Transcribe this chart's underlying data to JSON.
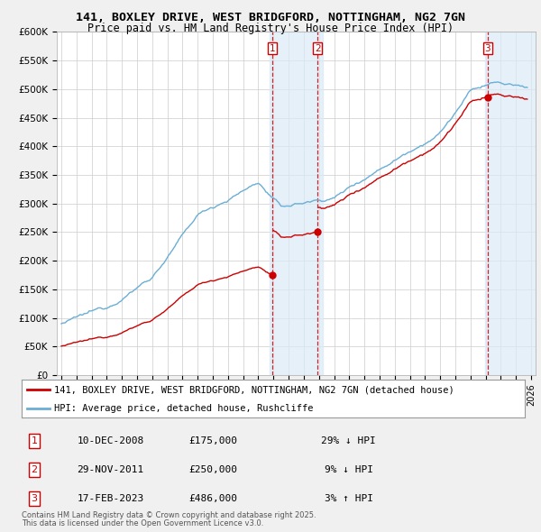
{
  "title1": "141, BOXLEY DRIVE, WEST BRIDGFORD, NOTTINGHAM, NG2 7GN",
  "title2": "Price paid vs. HM Land Registry's House Price Index (HPI)",
  "red_label": "141, BOXLEY DRIVE, WEST BRIDGFORD, NOTTINGHAM, NG2 7GN (detached house)",
  "blue_label": "HPI: Average price, detached house, Rushcliffe",
  "transactions": [
    {
      "num": 1,
      "date": "10-DEC-2008",
      "price": 175000,
      "pct": "29%",
      "dir": "↓",
      "t": 2008.917
    },
    {
      "num": 2,
      "date": "29-NOV-2011",
      "price": 250000,
      "pct": "9%",
      "dir": "↓",
      "t": 2011.917
    },
    {
      "num": 3,
      "date": "17-FEB-2023",
      "price": 486000,
      "pct": "3%",
      "dir": "↑",
      "t": 2023.125
    }
  ],
  "footnote1": "Contains HM Land Registry data © Crown copyright and database right 2025.",
  "footnote2": "This data is licensed under the Open Government Licence v3.0.",
  "ylim": [
    0,
    600000
  ],
  "yticks": [
    0,
    50000,
    100000,
    150000,
    200000,
    250000,
    300000,
    350000,
    400000,
    450000,
    500000,
    550000,
    600000
  ],
  "xmin": 1994.7,
  "xmax": 2026.3,
  "bg_color": "#f0f0f0",
  "plot_bg": "#ffffff",
  "grid_color": "#cccccc",
  "red_color": "#cc0000",
  "blue_color": "#6baed6",
  "shade_color": "#daeaf7",
  "vline_color": "#cc0000"
}
